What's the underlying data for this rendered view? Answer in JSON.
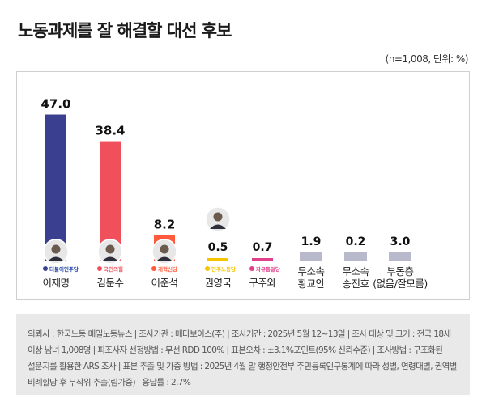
{
  "title": "노동과제를 잘 해결할 대선 후보",
  "unit_note": "(n=1,008, 단위: %)",
  "chart_data": {
    "type": "bar",
    "ylim": [
      0,
      50
    ],
    "categories": [
      "이재명",
      "김문수",
      "이준석",
      "권영국",
      "구주와",
      "무소속\n황교안",
      "무소속\n송진호",
      "부동층\n(없음/잘모름)"
    ],
    "values": [
      47.0,
      38.4,
      8.2,
      0.5,
      0.7,
      1.9,
      0.2,
      3.0
    ],
    "value_labels": [
      "47.0",
      "38.4",
      "8.2",
      "0.5",
      "0.7",
      "1.9",
      "0.2",
      "3.0"
    ],
    "bar_colors": [
      "#3b3f8f",
      "#f0505c",
      "#ff5a3c",
      "#f6c400",
      "#e0408a",
      "#b9b9cc",
      "#b9b9cc",
      "#b9b9cc"
    ],
    "party_logos": [
      "더불어민주당",
      "국민의힘",
      "개혁신당",
      "민주노동당",
      "자유통일당",
      "",
      "",
      ""
    ]
  },
  "footnote": "의뢰사 : 한국노동·매일노동뉴스 | 조사기관 : 메타보이스(주) | 조사기간 : 2025년 5월 12~13일 | 조사 대상 및 크기 : 전국 18세 이상 남녀 1,008명 | 피조사자 선정방법 : 무선 RDD 100% | 표본오차 : ±3.1%포인트(95% 신뢰수준) | 조사방법 : 구조화된 설문지를 활용한 ARS 조사 | 표본 추출 및 가중 방법 : 2025년 4월 말 행정안전부 주민등록인구통계에 따라 성별, 연령대별, 권역별 비례할당 후 무작위 추출(림가중) | 응답률 : 2.7%"
}
